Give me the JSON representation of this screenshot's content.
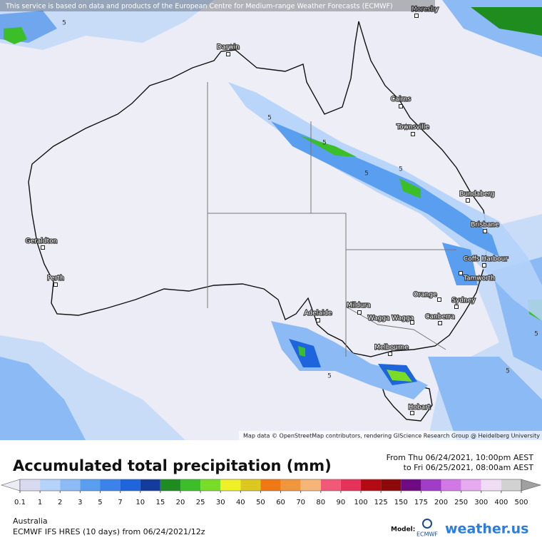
{
  "header_notice": "This service is based on data and products of the European Centre for Medium-range Weather Forecasts (ECMWF)",
  "attribution": "Map data © OpenStreetMap contributors, rendering GIScience Research Group @ Heidelberg University",
  "cities": [
    "Moresby",
    "Darwin",
    "Cairns",
    "Townsville",
    "Bundaberg",
    "Brisbane",
    "Coffs Harbour",
    "Tamworth",
    "Orange",
    "Sydney",
    "Canberra",
    "Mildura",
    "Wagga Wagga",
    "Adelaide",
    "Melbourne",
    "Hobart",
    "Geraldton",
    "Perth"
  ],
  "contour_labels": [
    "5",
    "5",
    "5",
    "5",
    "5",
    "5",
    "5",
    "5"
  ],
  "title": "Accumulated total precipitation (mm)",
  "valid_from": "From Thu 06/24/2021, 10:00pm AEST",
  "valid_to": "to Fri 06/25/2021, 08:00am AEST",
  "colorbar": {
    "ticks": [
      0.1,
      1,
      2,
      3,
      5,
      7,
      10,
      15,
      20,
      25,
      30,
      40,
      50,
      60,
      70,
      80,
      90,
      100,
      125,
      150,
      175,
      200,
      250,
      300,
      400,
      500
    ],
    "under_color": "#ececf7",
    "over_color": "#a0a0a0",
    "colors": [
      "#d9d9f0",
      "#b4d2fa",
      "#8cbaf5",
      "#5a9ef0",
      "#3c82eb",
      "#1e64dc",
      "#143c9c",
      "#1e8c1e",
      "#3cbe28",
      "#78dc28",
      "#f0f028",
      "#dcc81e",
      "#f07814",
      "#f0963c",
      "#f5b478",
      "#f05a78",
      "#e6325a",
      "#b40a14",
      "#8c0a0a",
      "#6e0a82",
      "#a03cc8",
      "#d278e6",
      "#e6aaf0",
      "#f0dcf5",
      "#d2d2d2"
    ]
  },
  "region": "Australia",
  "model_run": "ECMWF IFS HRES (10 days) from 06/24/2021/12z",
  "model_label": "Model:",
  "model_logo": "ECMWF",
  "brand": "weather.us"
}
